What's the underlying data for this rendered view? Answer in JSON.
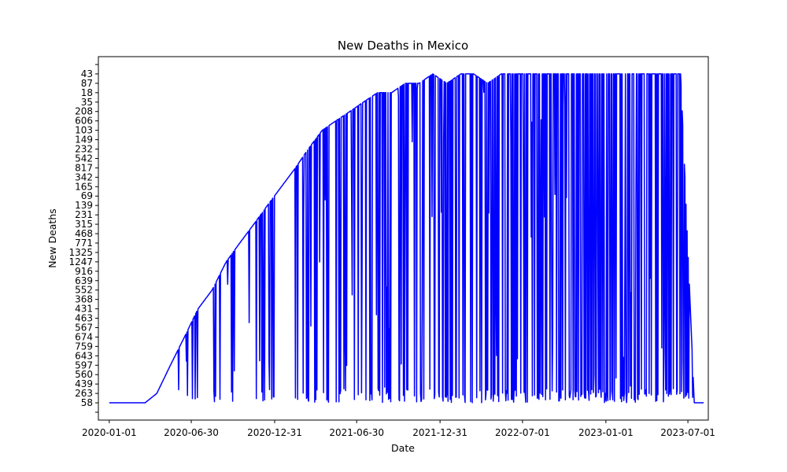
{
  "chart_data": {
    "type": "line",
    "title": "New Deaths in Mexico",
    "xlabel": "Date",
    "ylabel": "New Deaths",
    "line_color": "#0000ff",
    "grid": false,
    "y_axis_categorical": true,
    "x_ticks": [
      "2020-01-01",
      "2020-06-30",
      "2020-12-31",
      "2021-06-30",
      "2021-12-31",
      "2022-07-01",
      "2023-01-01",
      "2023-07-01"
    ],
    "y_ticks": [
      "",
      "58",
      "263",
      "439",
      "560",
      "597",
      "643",
      "759",
      "674",
      "567",
      "463",
      "431",
      "368",
      "552",
      "639",
      "916",
      "1247",
      "1325",
      "771",
      "468",
      "315",
      "231",
      "139",
      "69",
      "165",
      "342",
      "817",
      "542",
      "232",
      "149",
      "103",
      "606",
      "208",
      "35",
      "18",
      "87",
      "43",
      ""
    ],
    "x_range": [
      "2019-12-08",
      "2023-08-15"
    ],
    "series": [
      {
        "x": [
          "2020-01-01",
          "2020-02-01",
          "2020-03-01",
          "2020-03-20",
          "2020-04-15",
          "2020-05-15",
          "2020-06-15",
          "2020-07-15",
          "2020-08-15",
          "2020-09-15",
          "2020-10-15",
          "2020-11-15",
          "2020-12-15",
          "2021-01-15",
          "2021-02-15",
          "2021-03-15",
          "2021-04-15",
          "2021-05-15",
          "2021-06-15",
          "2021-07-15",
          "2021-08-15",
          "2021-09-15",
          "2021-10-15",
          "2021-11-15",
          "2021-12-15",
          "2022-01-15",
          "2022-02-15",
          "2022-03-15",
          "2022-04-15",
          "2022-05-15",
          "2022-06-15",
          "2022-07-15",
          "2022-08-15",
          "2022-09-15",
          "2022-10-15",
          "2022-11-15",
          "2022-12-15",
          "2023-01-15",
          "2023-02-15",
          "2023-03-15",
          "2023-04-15",
          "2023-05-15",
          "2023-06-15",
          "2023-07-15",
          "2023-08-05"
        ],
        "y": [
          "",
          "",
          "",
          "58",
          "263",
          "597",
          "674",
          "431",
          "552",
          "1247",
          "771",
          "315",
          "139",
          "165",
          "817",
          "232",
          "103",
          "606",
          "208",
          "35",
          "18",
          "18",
          "87",
          "87",
          "43",
          "87",
          "43",
          "43",
          "87",
          "43",
          "43",
          "43",
          "43",
          "43",
          "43",
          "43",
          "43",
          "43",
          "43",
          "43",
          "43",
          "43",
          "43",
          "",
          ""
        ],
        "drops_to": "58",
        "drop_ranges": [
          [
            "2020-06-01",
            "2020-12-31",
            0.35
          ],
          [
            "2021-01-15",
            "2022-03-15",
            0.7
          ],
          [
            "2022-03-15",
            "2023-07-15",
            0.95
          ]
        ]
      }
    ]
  }
}
